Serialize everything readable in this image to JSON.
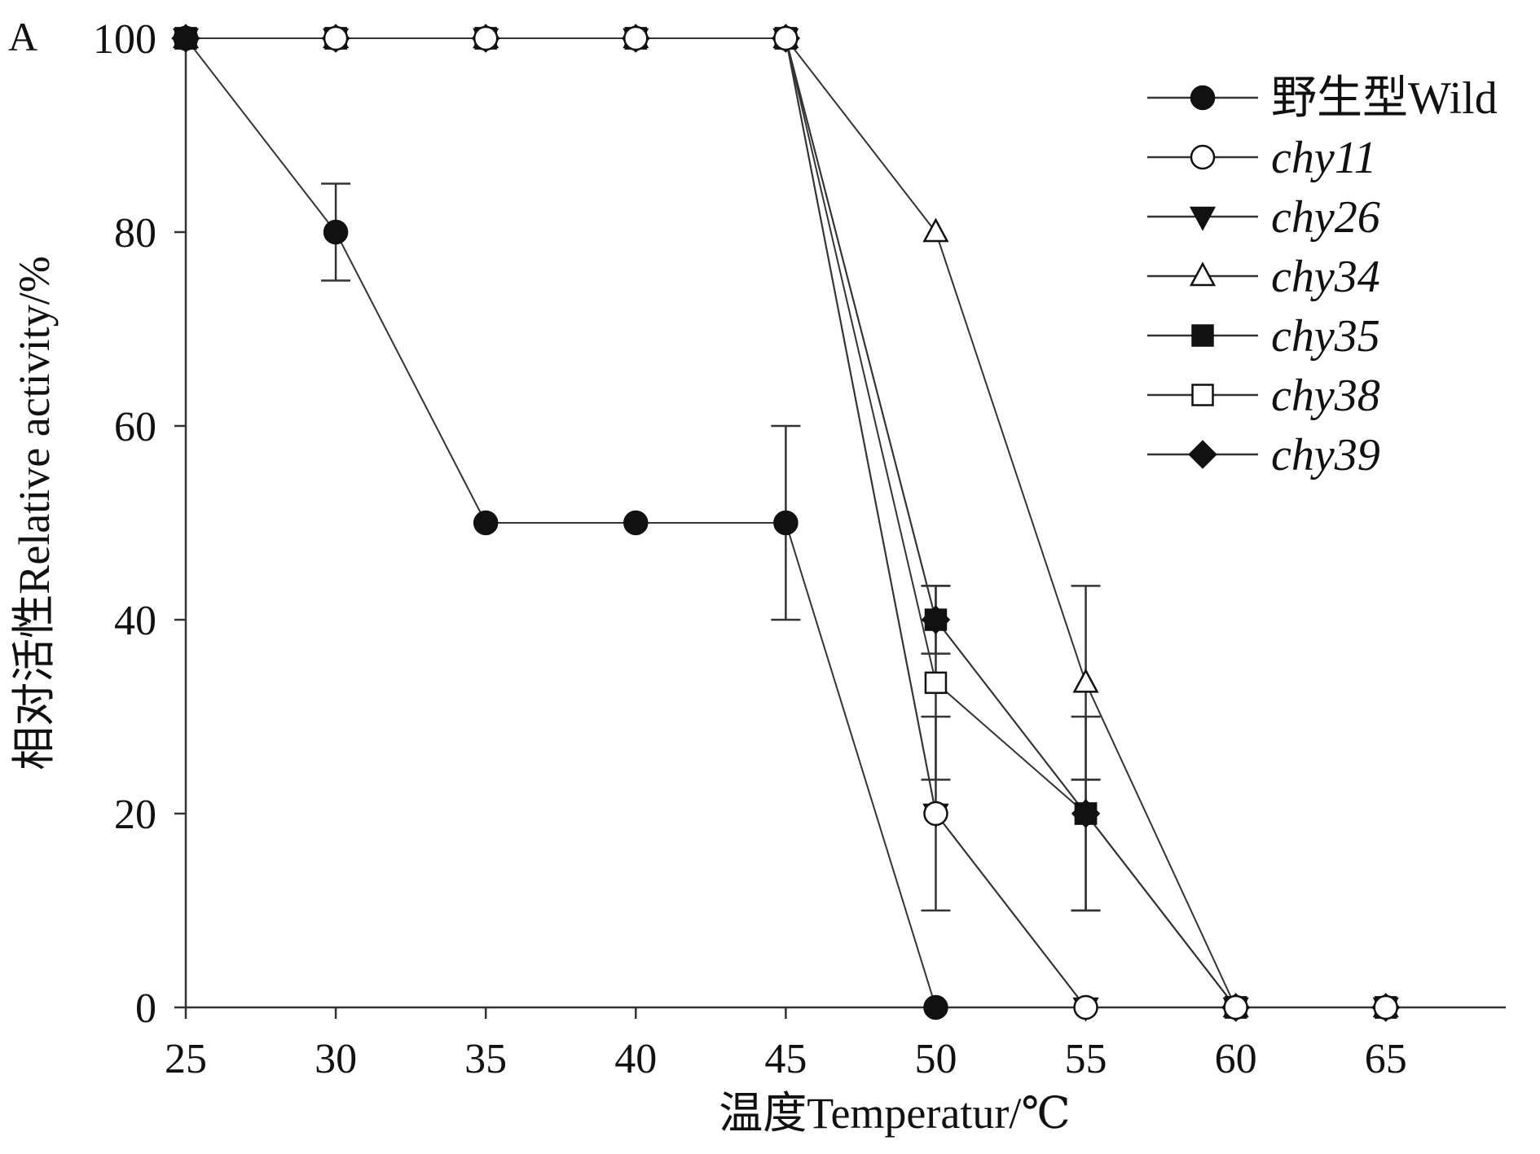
{
  "chart_data": {
    "type": "line",
    "panel_label": "A",
    "xlabel": "温度Temperatur/℃",
    "ylabel": "相对活性Relative activity/%",
    "xlim": [
      25,
      69
    ],
    "ylim": [
      0,
      100
    ],
    "xticks": [
      25,
      30,
      35,
      40,
      45,
      50,
      55,
      60,
      65
    ],
    "yticks": [
      0,
      20,
      40,
      60,
      80,
      100
    ],
    "legend_position": "top-right",
    "series": [
      {
        "name": "野生型Wild",
        "italic": false,
        "marker": "circle",
        "filled": true,
        "points": [
          [
            25,
            100
          ],
          [
            30,
            80
          ],
          [
            35,
            50
          ],
          [
            40,
            50
          ],
          [
            45,
            50
          ],
          [
            50,
            0
          ]
        ],
        "errors": [
          [
            30,
            75,
            85
          ],
          [
            45,
            40,
            60
          ]
        ]
      },
      {
        "name": "chy11",
        "italic": true,
        "marker": "circle",
        "filled": false,
        "points": [
          [
            25,
            100
          ],
          [
            30,
            100
          ],
          [
            35,
            100
          ],
          [
            40,
            100
          ],
          [
            45,
            100
          ],
          [
            50,
            20
          ],
          [
            55,
            0
          ],
          [
            60,
            0
          ],
          [
            65,
            0
          ]
        ],
        "errors": [
          [
            50,
            10,
            30
          ]
        ]
      },
      {
        "name": "chy26",
        "italic": true,
        "marker": "triangle-down",
        "filled": true,
        "points": [
          [
            25,
            100
          ],
          [
            30,
            100
          ],
          [
            35,
            100
          ],
          [
            40,
            100
          ],
          [
            45,
            100
          ],
          [
            50,
            20
          ],
          [
            55,
            0
          ],
          [
            60,
            0
          ],
          [
            65,
            0
          ]
        ],
        "errors": []
      },
      {
        "name": "chy34",
        "italic": true,
        "marker": "triangle-up",
        "filled": false,
        "points": [
          [
            25,
            100
          ],
          [
            30,
            100
          ],
          [
            35,
            100
          ],
          [
            40,
            100
          ],
          [
            45,
            100
          ],
          [
            50,
            80
          ],
          [
            55,
            33.5
          ],
          [
            60,
            0
          ],
          [
            65,
            0
          ]
        ],
        "errors": [
          [
            55,
            23.5,
            43.5
          ]
        ]
      },
      {
        "name": "chy35",
        "italic": true,
        "marker": "square",
        "filled": true,
        "points": [
          [
            25,
            100
          ],
          [
            30,
            100
          ],
          [
            35,
            100
          ],
          [
            40,
            100
          ],
          [
            45,
            100
          ],
          [
            50,
            40
          ],
          [
            55,
            20
          ],
          [
            60,
            0
          ],
          [
            65,
            0
          ]
        ],
        "errors": [
          [
            50,
            36.5,
            43.5
          ],
          [
            55,
            10,
            30
          ]
        ]
      },
      {
        "name": "chy38",
        "italic": true,
        "marker": "square",
        "filled": false,
        "points": [
          [
            25,
            100
          ],
          [
            30,
            100
          ],
          [
            35,
            100
          ],
          [
            40,
            100
          ],
          [
            45,
            100
          ],
          [
            50,
            33.5
          ],
          [
            55,
            20
          ],
          [
            60,
            0
          ],
          [
            65,
            0
          ]
        ],
        "errors": [
          [
            50,
            23.5,
            43.5
          ]
        ]
      },
      {
        "name": "chy39",
        "italic": true,
        "marker": "diamond",
        "filled": true,
        "points": [
          [
            25,
            100
          ],
          [
            30,
            100
          ],
          [
            35,
            100
          ],
          [
            40,
            100
          ],
          [
            45,
            100
          ],
          [
            50,
            40
          ],
          [
            55,
            20
          ],
          [
            60,
            0
          ],
          [
            65,
            0
          ]
        ],
        "errors": [
          [
            55,
            10,
            23.5
          ]
        ]
      }
    ]
  }
}
